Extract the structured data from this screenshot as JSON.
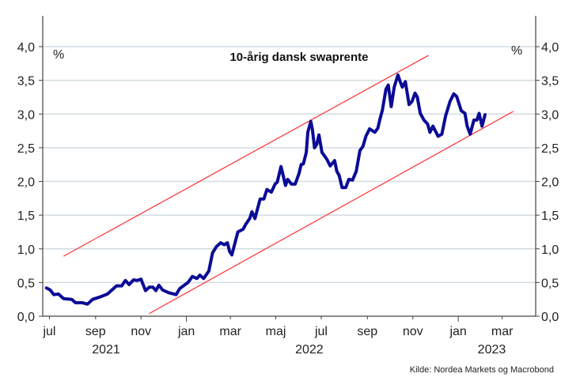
{
  "chart_data": {
    "type": "line",
    "title": "10-årig dansk swaprente",
    "unit_left": "%",
    "unit_right": "%",
    "source": "Kilde: Nordea Markets og Macrobond",
    "xlim": [
      "2021-06-22",
      "2023-04-15"
    ],
    "ylim": [
      0,
      4
    ],
    "yticks": [
      "0,0",
      "0,5",
      "1,0",
      "1,5",
      "2,0",
      "2,5",
      "3,0",
      "3,5",
      "4,0"
    ],
    "ytick_values": [
      0,
      0.5,
      1,
      1.5,
      2,
      2.5,
      3,
      3.5,
      4
    ],
    "xtick_labels": [
      {
        "date": "2021-07-01",
        "label": "jul"
      },
      {
        "date": "2021-09-01",
        "label": "sep"
      },
      {
        "date": "2021-11-01",
        "label": "nov"
      },
      {
        "date": "2022-01-01",
        "label": "jan"
      },
      {
        "date": "2022-03-01",
        "label": "mar"
      },
      {
        "date": "2022-05-01",
        "label": "maj"
      },
      {
        "date": "2022-07-01",
        "label": "jul"
      },
      {
        "date": "2022-09-01",
        "label": "sep"
      },
      {
        "date": "2022-11-01",
        "label": "nov"
      },
      {
        "date": "2023-01-01",
        "label": "jan"
      },
      {
        "date": "2023-03-01",
        "label": "mar"
      }
    ],
    "year_labels": [
      {
        "date": "2021-09-15",
        "label": "2021"
      },
      {
        "date": "2022-06-15",
        "label": "2022"
      },
      {
        "date": "2023-02-15",
        "label": "2023"
      }
    ],
    "grid": true,
    "colors": {
      "series": "#0b0b96",
      "channel": "#ff3030",
      "grid": "#d3dbe2",
      "axis": "#444444"
    },
    "series": [
      {
        "points": [
          [
            "2021-06-27",
            0.42
          ],
          [
            "2021-07-02",
            0.39
          ],
          [
            "2021-07-07",
            0.32
          ],
          [
            "2021-07-13",
            0.33
          ],
          [
            "2021-07-20",
            0.26
          ],
          [
            "2021-07-31",
            0.25
          ],
          [
            "2021-08-05",
            0.2
          ],
          [
            "2021-08-14",
            0.2
          ],
          [
            "2021-08-21",
            0.18
          ],
          [
            "2021-08-28",
            0.25
          ],
          [
            "2021-09-08",
            0.29
          ],
          [
            "2021-09-17",
            0.33
          ],
          [
            "2021-09-20",
            0.36
          ],
          [
            "2021-09-29",
            0.45
          ],
          [
            "2021-10-06",
            0.45
          ],
          [
            "2021-10-11",
            0.53
          ],
          [
            "2021-10-16",
            0.47
          ],
          [
            "2021-10-22",
            0.54
          ],
          [
            "2021-10-27",
            0.53
          ],
          [
            "2021-11-01",
            0.55
          ],
          [
            "2021-11-07",
            0.38
          ],
          [
            "2021-11-12",
            0.43
          ],
          [
            "2021-11-17",
            0.43
          ],
          [
            "2021-11-21",
            0.38
          ],
          [
            "2021-11-25",
            0.46
          ],
          [
            "2021-11-30",
            0.39
          ],
          [
            "2021-12-08",
            0.35
          ],
          [
            "2021-12-18",
            0.32
          ],
          [
            "2021-12-23",
            0.41
          ],
          [
            "2022-01-03",
            0.5
          ],
          [
            "2022-01-09",
            0.59
          ],
          [
            "2022-01-15",
            0.56
          ],
          [
            "2022-01-19",
            0.61
          ],
          [
            "2022-01-24",
            0.56
          ],
          [
            "2022-01-31",
            0.67
          ],
          [
            "2022-02-05",
            0.94
          ],
          [
            "2022-02-10",
            1.03
          ],
          [
            "2022-02-16",
            1.09
          ],
          [
            "2022-02-21",
            1.06
          ],
          [
            "2022-02-25",
            1.09
          ],
          [
            "2022-02-28",
            0.96
          ],
          [
            "2022-03-03",
            0.91
          ],
          [
            "2022-03-11",
            1.25
          ],
          [
            "2022-03-18",
            1.29
          ],
          [
            "2022-03-22",
            1.37
          ],
          [
            "2022-03-27",
            1.45
          ],
          [
            "2022-03-30",
            1.55
          ],
          [
            "2022-04-03",
            1.45
          ],
          [
            "2022-04-10",
            1.74
          ],
          [
            "2022-04-15",
            1.74
          ],
          [
            "2022-04-19",
            1.88
          ],
          [
            "2022-04-25",
            1.84
          ],
          [
            "2022-04-30",
            1.96
          ],
          [
            "2022-05-03",
            1.99
          ],
          [
            "2022-05-08",
            2.22
          ],
          [
            "2022-05-10",
            2.13
          ],
          [
            "2022-05-14",
            1.94
          ],
          [
            "2022-05-17",
            2.03
          ],
          [
            "2022-05-22",
            1.96
          ],
          [
            "2022-05-27",
            1.96
          ],
          [
            "2022-06-01",
            2.11
          ],
          [
            "2022-06-04",
            2.25
          ],
          [
            "2022-06-07",
            2.26
          ],
          [
            "2022-06-11",
            2.43
          ],
          [
            "2022-06-13",
            2.73
          ],
          [
            "2022-06-17",
            2.89
          ],
          [
            "2022-06-19",
            2.78
          ],
          [
            "2022-06-22",
            2.5
          ],
          [
            "2022-06-25",
            2.55
          ],
          [
            "2022-06-28",
            2.69
          ],
          [
            "2022-07-02",
            2.43
          ],
          [
            "2022-07-06",
            2.37
          ],
          [
            "2022-07-09",
            2.32
          ],
          [
            "2022-07-13",
            2.23
          ],
          [
            "2022-07-19",
            2.31
          ],
          [
            "2022-07-22",
            2.15
          ],
          [
            "2022-07-25",
            2.09
          ],
          [
            "2022-07-29",
            1.91
          ],
          [
            "2022-08-03",
            1.91
          ],
          [
            "2022-08-07",
            2.03
          ],
          [
            "2022-08-12",
            2.02
          ],
          [
            "2022-08-17",
            2.15
          ],
          [
            "2022-08-22",
            2.46
          ],
          [
            "2022-08-26",
            2.52
          ],
          [
            "2022-08-30",
            2.67
          ],
          [
            "2022-09-04",
            2.78
          ],
          [
            "2022-09-11",
            2.73
          ],
          [
            "2022-09-15",
            2.79
          ],
          [
            "2022-09-18",
            2.93
          ],
          [
            "2022-09-21",
            3.05
          ],
          [
            "2022-09-26",
            3.37
          ],
          [
            "2022-09-29",
            3.43
          ],
          [
            "2022-10-03",
            3.11
          ],
          [
            "2022-10-07",
            3.4
          ],
          [
            "2022-10-12",
            3.58
          ],
          [
            "2022-10-15",
            3.48
          ],
          [
            "2022-10-18",
            3.4
          ],
          [
            "2022-10-22",
            3.48
          ],
          [
            "2022-10-27",
            3.14
          ],
          [
            "2022-10-31",
            3.19
          ],
          [
            "2022-11-04",
            3.31
          ],
          [
            "2022-11-07",
            3.25
          ],
          [
            "2022-11-11",
            3.01
          ],
          [
            "2022-11-16",
            2.91
          ],
          [
            "2022-11-21",
            2.85
          ],
          [
            "2022-11-24",
            2.73
          ],
          [
            "2022-11-28",
            2.82
          ],
          [
            "2022-12-05",
            2.67
          ],
          [
            "2022-12-10",
            2.7
          ],
          [
            "2022-12-15",
            2.97
          ],
          [
            "2022-12-21",
            3.19
          ],
          [
            "2022-12-26",
            3.3
          ],
          [
            "2022-12-30",
            3.26
          ],
          [
            "2023-01-05",
            3.05
          ],
          [
            "2023-01-10",
            3.01
          ],
          [
            "2023-01-13",
            2.82
          ],
          [
            "2023-01-17",
            2.7
          ],
          [
            "2023-01-22",
            2.91
          ],
          [
            "2023-01-26",
            2.91
          ],
          [
            "2023-01-29",
            3.01
          ],
          [
            "2023-02-02",
            2.82
          ],
          [
            "2023-02-06",
            2.99
          ]
        ]
      }
    ],
    "channel_lines": [
      {
        "name": "upper",
        "from": [
          "2021-07-20",
          0.89
        ],
        "to": [
          "2022-11-22",
          3.87
        ]
      },
      {
        "name": "lower",
        "from": [
          "2021-11-12",
          0.04
        ],
        "to": [
          "2023-03-16",
          3.04
        ]
      }
    ]
  }
}
